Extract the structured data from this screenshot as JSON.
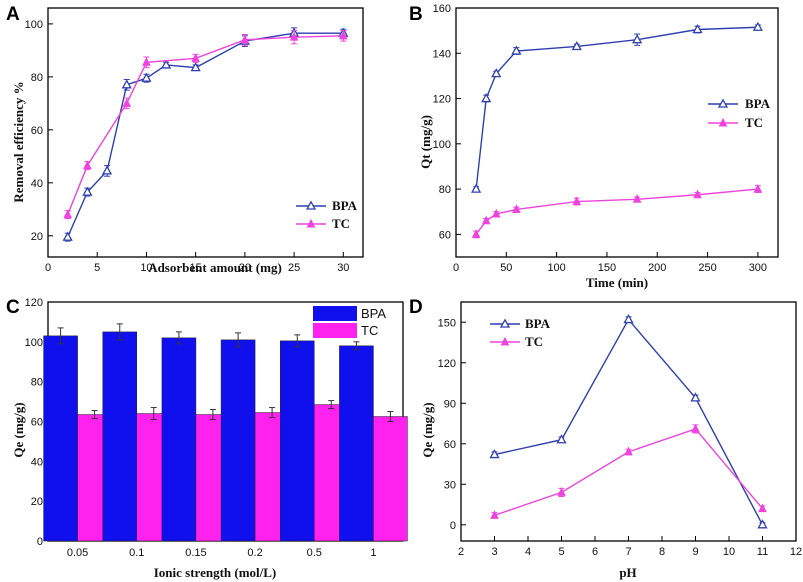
{
  "colors": {
    "bpa": "#2f3fb0",
    "tc": "#ee44dd",
    "bpa_bar": "#1010ee",
    "tc_bar": "#ff22ee"
  },
  "chart_data": [
    {
      "panel": "A",
      "type": "line",
      "xlabel": "Adsorbent amount (mg)",
      "ylabel": "Removal efficiency %",
      "xlim": [
        0,
        32
      ],
      "ylim": [
        12,
        106
      ],
      "xticks": [
        "0",
        "5",
        "10",
        "15",
        "20",
        "25",
        "30"
      ],
      "yticks": [
        "20",
        "40",
        "60",
        "80",
        "100"
      ],
      "legend_pos": "lower-right",
      "series": [
        {
          "name": "BPA",
          "x": [
            2,
            4,
            6,
            8,
            10,
            12,
            15,
            20,
            25,
            30
          ],
          "y": [
            19.5,
            36.5,
            44.5,
            77,
            79.5,
            84.5,
            83.5,
            93.5,
            96.5,
            96.5
          ],
          "err": [
            1.5,
            1.5,
            2,
            2,
            1.5,
            1,
            1,
            2,
            2,
            1.5
          ]
        },
        {
          "name": "TC",
          "x": [
            2,
            4,
            8,
            10,
            15,
            20,
            25,
            30
          ],
          "y": [
            28,
            46.5,
            70,
            85.5,
            87,
            94,
            95,
            95.5
          ],
          "err": [
            1.5,
            1.5,
            2,
            2,
            1.5,
            2,
            2.5,
            2
          ]
        }
      ]
    },
    {
      "panel": "B",
      "type": "line",
      "xlabel": "Time (min)",
      "ylabel": "Qt (mg/g)",
      "xlim": [
        0,
        320
      ],
      "ylim": [
        50,
        160
      ],
      "xticks": [
        "0",
        "50",
        "100",
        "150",
        "200",
        "250",
        "300"
      ],
      "yticks": [
        "60",
        "80",
        "100",
        "120",
        "140",
        "160"
      ],
      "legend_pos": "middle-right",
      "series": [
        {
          "name": "BPA",
          "x": [
            20,
            30,
            40,
            60,
            120,
            180,
            240,
            300
          ],
          "y": [
            80,
            120,
            131,
            141,
            143,
            146,
            150.5,
            151.5
          ],
          "err": [
            1,
            1.5,
            1,
            1.5,
            1,
            2.5,
            1.5,
            1
          ]
        },
        {
          "name": "TC",
          "x": [
            20,
            30,
            40,
            60,
            120,
            180,
            240,
            300
          ],
          "y": [
            60,
            66,
            69,
            71,
            74.5,
            75.5,
            77.5,
            80
          ],
          "err": [
            1.5,
            1,
            1,
            1,
            1.5,
            1,
            1,
            1.5
          ]
        }
      ]
    },
    {
      "panel": "C",
      "type": "bar",
      "xlabel": "Ionic strength (mol/L)",
      "ylabel": "Qe (mg/g)",
      "ylim": [
        0,
        120
      ],
      "categories": [
        "0.05",
        "0.1",
        "0.15",
        "0.2",
        "0.5",
        "1"
      ],
      "yticks": [
        "0",
        "20",
        "40",
        "60",
        "80",
        "100",
        "120"
      ],
      "legend_pos": "top-right",
      "series": [
        {
          "name": "BPA",
          "values": [
            103,
            105,
            102,
            101,
            100.5,
            98
          ],
          "err": [
            4,
            4,
            3,
            3.5,
            3,
            2
          ]
        },
        {
          "name": "TC",
          "values": [
            63.5,
            64,
            63.5,
            64.5,
            68.5,
            62.5
          ],
          "err": [
            2,
            3,
            2.5,
            2.5,
            2,
            2.5
          ]
        }
      ]
    },
    {
      "panel": "D",
      "type": "line",
      "xlabel": "pH",
      "ylabel": "Qe (mg/g)",
      "xlim": [
        2,
        12
      ],
      "ylim": [
        -12,
        165
      ],
      "xticks": [
        "2",
        "3",
        "4",
        "5",
        "6",
        "7",
        "8",
        "9",
        "10",
        "11",
        "12"
      ],
      "yticks": [
        "0",
        "30",
        "60",
        "90",
        "120",
        "150"
      ],
      "legend_pos": "top-left",
      "series": [
        {
          "name": "BPA",
          "x": [
            3,
            5,
            7,
            9,
            11
          ],
          "y": [
            52,
            63,
            152,
            94,
            0
          ],
          "err": [
            2,
            2,
            2,
            2,
            1.5
          ]
        },
        {
          "name": "TC",
          "x": [
            3,
            5,
            7,
            9,
            11
          ],
          "y": [
            7,
            24,
            54,
            71,
            12
          ],
          "err": [
            2,
            3,
            2,
            3,
            2
          ]
        }
      ]
    }
  ]
}
